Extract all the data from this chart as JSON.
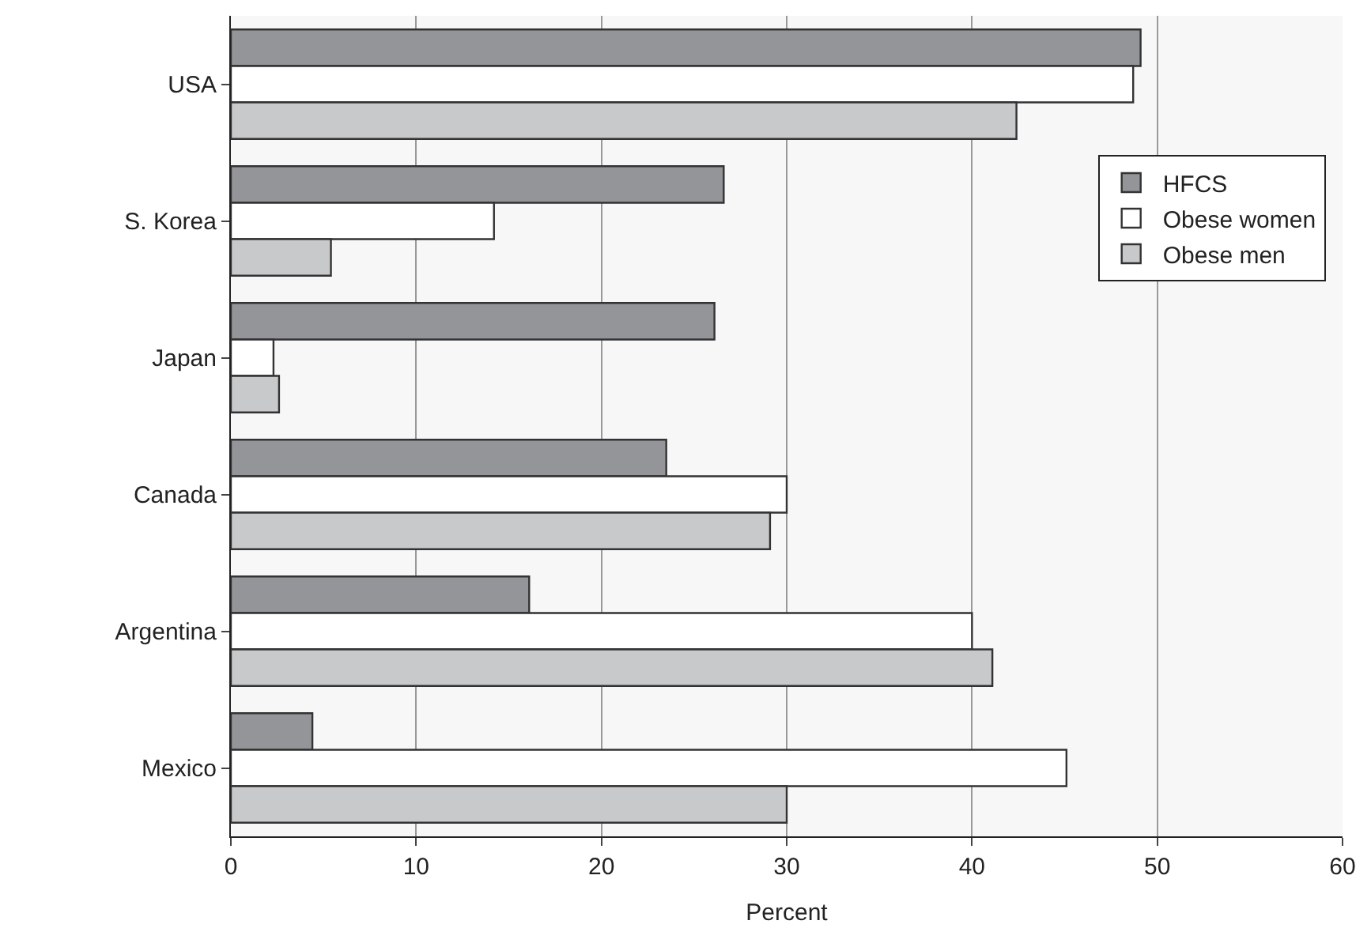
{
  "chart_data": {
    "type": "bar",
    "orientation": "horizontal",
    "xlabel": "Percent",
    "categories": [
      "USA",
      "S. Korea",
      "Japan",
      "Canada",
      "Argentina",
      "Mexico"
    ],
    "series": [
      {
        "name": "HFCS",
        "color": "#939598",
        "values": [
          49.1,
          26.6,
          26.1,
          23.5,
          16.1,
          4.4
        ]
      },
      {
        "name": "Obese women",
        "color": "#ffffff",
        "values": [
          48.7,
          14.2,
          2.3,
          30.0,
          40.0,
          45.1
        ]
      },
      {
        "name": "Obese men",
        "color": "#c8c9cb",
        "values": [
          42.4,
          5.4,
          2.6,
          29.1,
          41.1,
          30.0
        ]
      }
    ],
    "xlim": [
      0,
      60
    ],
    "xticks": [
      0,
      10,
      20,
      30,
      40,
      50,
      60
    ],
    "grid": "x",
    "legend": "top right"
  }
}
